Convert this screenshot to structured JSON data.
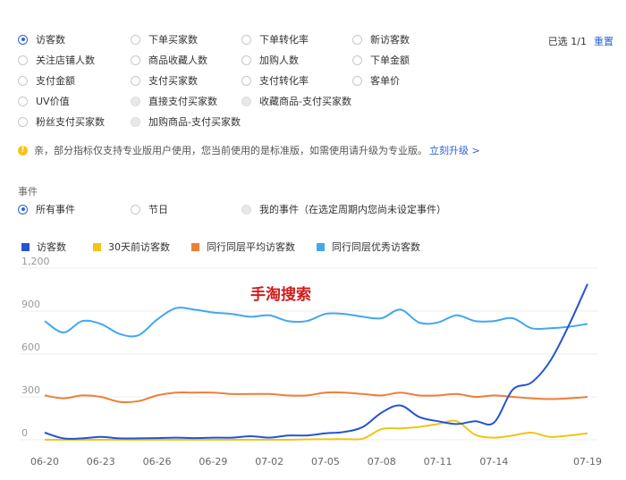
{
  "metrics": [
    [
      {
        "label": "访客数",
        "state": "checked"
      },
      {
        "label": "下单买家数",
        "state": "normal"
      },
      {
        "label": "下单转化率",
        "state": "normal"
      },
      {
        "label": "新访客数",
        "state": "normal"
      }
    ],
    [
      {
        "label": "关注店铺人数",
        "state": "normal"
      },
      {
        "label": "商品收藏人数",
        "state": "normal"
      },
      {
        "label": "加购人数",
        "state": "normal"
      },
      {
        "label": "下单金额",
        "state": "normal"
      }
    ],
    [
      {
        "label": "支付金额",
        "state": "normal"
      },
      {
        "label": "支付买家数",
        "state": "normal"
      },
      {
        "label": "支付转化率",
        "state": "normal"
      },
      {
        "label": "客单价",
        "state": "normal"
      }
    ],
    [
      {
        "label": "UV价值",
        "state": "normal"
      },
      {
        "label": "直接支付买家数",
        "state": "disabled"
      },
      {
        "label": "收藏商品-支付买家数",
        "state": "disabled"
      }
    ],
    [
      {
        "label": "粉丝支付买家数",
        "state": "normal"
      },
      {
        "label": "加购商品-支付买家数",
        "state": "disabled"
      }
    ]
  ],
  "selection": {
    "count_label": "已选 1/1",
    "reset_label": "重置"
  },
  "notice": {
    "icon": "warning-icon",
    "text": "亲，部分指标仅支持专业版用户使用，您当前使用的是标准版，如需使用请升级为专业版。",
    "link": "立刻升级 >"
  },
  "events": {
    "title": "事件",
    "options": [
      {
        "label": "所有事件",
        "state": "checked"
      },
      {
        "label": "节日",
        "state": "normal"
      },
      {
        "label": "我的事件（在选定周期内您尚未设定事件）",
        "state": "disabled"
      }
    ]
  },
  "colors": {
    "accent": "#2b64d8",
    "warning": "#f5c518"
  },
  "chart_data": {
    "type": "line",
    "x": [
      "06-20",
      "06-21",
      "06-22",
      "06-23",
      "06-24",
      "06-25",
      "06-26",
      "06-27",
      "06-28",
      "06-29",
      "06-30",
      "07-01",
      "07-02",
      "07-03",
      "07-04",
      "07-05",
      "07-06",
      "07-07",
      "07-08",
      "07-09",
      "07-10",
      "07-11",
      "07-12",
      "07-13",
      "07-14",
      "07-15",
      "07-16",
      "07-17",
      "07-18",
      "07-19"
    ],
    "xticks": [
      "06-20",
      "06-23",
      "06-26",
      "06-29",
      "07-02",
      "07-05",
      "07-08",
      "07-11",
      "07-14",
      "07-19"
    ],
    "yticks": [
      "0",
      "300",
      "600",
      "900",
      "1,200"
    ],
    "ylim": [
      0,
      1200
    ],
    "grid": "horizontal",
    "legend_position": "top-left",
    "series": [
      {
        "name": "访客数",
        "color": "#2454d0",
        "values": [
          50,
          10,
          10,
          20,
          10,
          10,
          12,
          15,
          12,
          15,
          15,
          25,
          15,
          30,
          30,
          45,
          55,
          90,
          190,
          240,
          160,
          130,
          110,
          130,
          120,
          350,
          400,
          550,
          800,
          1090
        ]
      },
      {
        "name": "30天前访客数",
        "color": "#f0c419",
        "values": [
          0,
          0,
          0,
          0,
          0,
          0,
          0,
          0,
          0,
          0,
          0,
          0,
          0,
          0,
          3,
          4,
          5,
          8,
          75,
          80,
          90,
          110,
          130,
          35,
          15,
          30,
          50,
          20,
          30,
          45
        ]
      },
      {
        "name": "同行同层平均访客数",
        "color": "#ec7f37",
        "values": [
          310,
          290,
          310,
          300,
          265,
          270,
          310,
          330,
          330,
          330,
          320,
          320,
          320,
          310,
          310,
          330,
          330,
          320,
          310,
          330,
          310,
          310,
          320,
          300,
          310,
          300,
          290,
          285,
          290,
          300
        ]
      },
      {
        "name": "同行同层优秀访客数",
        "color": "#42a7ef",
        "values": [
          830,
          750,
          830,
          810,
          740,
          730,
          840,
          920,
          910,
          890,
          880,
          860,
          870,
          830,
          830,
          880,
          880,
          860,
          850,
          910,
          820,
          820,
          870,
          830,
          830,
          850,
          780,
          780,
          790,
          810
        ]
      }
    ]
  },
  "watermark": "手淘搜索"
}
